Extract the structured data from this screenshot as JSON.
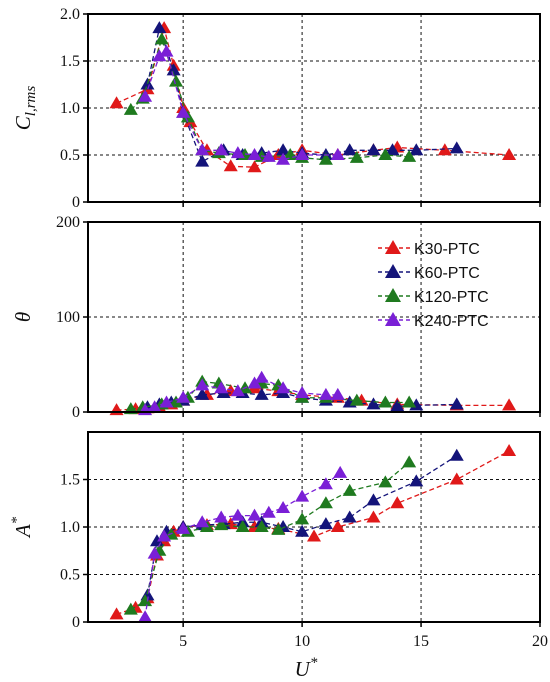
{
  "chart_data": {
    "type": "line",
    "x_tick_labels": [
      "5",
      "10",
      "15",
      "20"
    ],
    "x_ticks": [
      5,
      10,
      15,
      20
    ],
    "xlim": [
      1,
      20
    ],
    "xlabel": {
      "main": "U",
      "sup": "*"
    },
    "grid": true,
    "legend": {
      "placement": "top-right of middle panel",
      "entries": [
        "K30-PTC",
        "K60-PTC",
        "K120-PTC",
        "K240-PTC"
      ]
    },
    "series_colors": [
      "#e01919",
      "#14147a",
      "#1f7a1f",
      "#7a1fd6"
    ],
    "panels": [
      {
        "ylabel": {
          "main": "C",
          "sub": "l,rms"
        },
        "ylim": [
          0,
          2.0
        ],
        "y_ticks": [
          0,
          0.5,
          1.0,
          1.5,
          2.0
        ],
        "y_tick_labels": [
          "0",
          "0.5",
          "1.0",
          "1.5",
          "2.0"
        ],
        "series": [
          {
            "name": "K30-PTC",
            "x": [
              2.2,
              3.5,
              4.2,
              4.6,
              5.0,
              5.3,
              6.0,
              7.0,
              8.0,
              9.0,
              10.0,
              11.5,
              13.0,
              14.0,
              16.0,
              18.7
            ],
            "y": [
              1.05,
              1.2,
              1.85,
              1.45,
              1.0,
              0.85,
              0.55,
              0.38,
              0.37,
              0.5,
              0.55,
              0.5,
              0.55,
              0.58,
              0.55,
              0.5
            ]
          },
          {
            "name": "K60-PTC",
            "x": [
              3.5,
              4.0,
              4.6,
              5.0,
              5.8,
              6.7,
              7.5,
              8.3,
              9.2,
              10.0,
              11.0,
              12.0,
              13.0,
              13.8,
              14.8,
              16.5
            ],
            "y": [
              1.25,
              1.85,
              1.4,
              0.95,
              0.43,
              0.55,
              0.5,
              0.52,
              0.55,
              0.52,
              0.5,
              0.55,
              0.55,
              0.55,
              0.55,
              0.57
            ]
          },
          {
            "name": "K120-PTC",
            "x": [
              2.8,
              3.3,
              4.1,
              4.7,
              5.2,
              5.8,
              6.5,
              7.6,
              8.3,
              9.5,
              10.0,
              11.0,
              12.3,
              13.5,
              14.5
            ],
            "y": [
              0.98,
              1.1,
              1.73,
              1.28,
              0.9,
              0.55,
              0.52,
              0.5,
              0.48,
              0.5,
              0.47,
              0.45,
              0.47,
              0.5,
              0.48
            ]
          },
          {
            "name": "K240-PTC",
            "x": [
              3.4,
              4.0,
              4.3,
              5.0,
              5.8,
              6.6,
              7.3,
              8.0,
              8.6,
              9.2,
              10.0,
              11.5
            ],
            "y": [
              1.12,
              1.55,
              1.6,
              0.95,
              0.55,
              0.55,
              0.52,
              0.5,
              0.48,
              0.45,
              0.5,
              0.5
            ]
          }
        ]
      },
      {
        "ylabel": {
          "main": "θ",
          "sub": ""
        },
        "ylim": [
          0,
          200
        ],
        "y_ticks": [
          0,
          100,
          200
        ],
        "y_tick_labels": [
          "0",
          "100",
          "200"
        ],
        "series": [
          {
            "name": "K30-PTC",
            "x": [
              2.2,
              3.0,
              3.5,
              4.0,
              4.5,
              5.0,
              6.0,
              7.0,
              8.0,
              9.0,
              10.0,
              11.5,
              12.5,
              14.0,
              16.5,
              18.7
            ],
            "y": [
              2,
              3,
              4,
              5,
              8,
              12,
              18,
              22,
              25,
              22,
              18,
              15,
              12,
              8,
              7,
              7
            ]
          },
          {
            "name": "K60-PTC",
            "x": [
              3.5,
              4.0,
              4.5,
              5.0,
              5.8,
              6.7,
              7.5,
              8.3,
              9.2,
              10.0,
              11.0,
              12.0,
              13.0,
              14.0,
              14.8,
              16.5
            ],
            "y": [
              5,
              8,
              10,
              12,
              18,
              20,
              20,
              18,
              20,
              15,
              12,
              10,
              8,
              6,
              7,
              8
            ]
          },
          {
            "name": "K120-PTC",
            "x": [
              2.8,
              3.3,
              4.1,
              4.7,
              5.2,
              5.8,
              6.5,
              7.6,
              8.3,
              9.0,
              10.0,
              11.0,
              12.3,
              13.5,
              14.5
            ],
            "y": [
              3,
              5,
              8,
              10,
              15,
              32,
              30,
              25,
              30,
              28,
              15,
              15,
              12,
              10,
              10
            ]
          },
          {
            "name": "K240-PTC",
            "x": [
              3.4,
              3.8,
              4.3,
              5.0,
              5.8,
              6.6,
              7.3,
              8.0,
              8.3,
              9.2,
              10.0,
              11.0,
              11.5
            ],
            "y": [
              2,
              5,
              10,
              15,
              28,
              25,
              22,
              30,
              36,
              25,
              20,
              18,
              18
            ]
          }
        ]
      },
      {
        "ylabel": {
          "main": "A",
          "sup": "*"
        },
        "ylim": [
          0,
          2.0
        ],
        "y_ticks": [
          0,
          0.5,
          1.0,
          1.5
        ],
        "y_tick_labels": [
          "0",
          "0.5",
          "1.0",
          "1.5"
        ],
        "series": [
          {
            "name": "K30-PTC",
            "x": [
              2.2,
              3.0,
              3.5,
              3.9,
              4.2,
              4.6,
              5.0,
              6.0,
              7.0,
              8.0,
              9.0,
              10.5,
              11.5,
              13.0,
              14.0,
              16.5,
              18.7
            ],
            "y": [
              0.08,
              0.15,
              0.25,
              0.7,
              0.85,
              0.95,
              1.0,
              1.02,
              1.03,
              1.0,
              0.98,
              0.9,
              1.0,
              1.1,
              1.25,
              1.5,
              1.8
            ]
          },
          {
            "name": "K60-PTC",
            "x": [
              3.5,
              3.9,
              4.3,
              5.0,
              5.8,
              6.7,
              7.5,
              8.3,
              9.2,
              10.0,
              11.0,
              12.0,
              13.0,
              14.8,
              16.5
            ],
            "y": [
              0.28,
              0.85,
              0.95,
              1.0,
              1.02,
              1.03,
              1.05,
              1.05,
              1.0,
              0.95,
              1.03,
              1.1,
              1.28,
              1.48,
              1.75
            ]
          },
          {
            "name": "K120-PTC",
            "x": [
              2.8,
              3.4,
              4.0,
              4.5,
              5.2,
              6.0,
              6.6,
              7.5,
              8.3,
              9.0,
              10.0,
              11.0,
              12.0,
              13.5,
              14.5
            ],
            "y": [
              0.13,
              0.22,
              0.75,
              0.92,
              0.95,
              1.0,
              1.02,
              1.0,
              1.0,
              0.97,
              1.08,
              1.25,
              1.38,
              1.47,
              1.68
            ]
          },
          {
            "name": "K240-PTC",
            "x": [
              3.4,
              3.8,
              4.2,
              5.0,
              5.8,
              6.6,
              7.3,
              8.0,
              8.6,
              9.2,
              10.0,
              11.0,
              11.6
            ],
            "y": [
              0.05,
              0.72,
              0.9,
              0.98,
              1.05,
              1.1,
              1.12,
              1.12,
              1.15,
              1.2,
              1.32,
              1.45,
              1.57
            ]
          }
        ]
      }
    ]
  }
}
